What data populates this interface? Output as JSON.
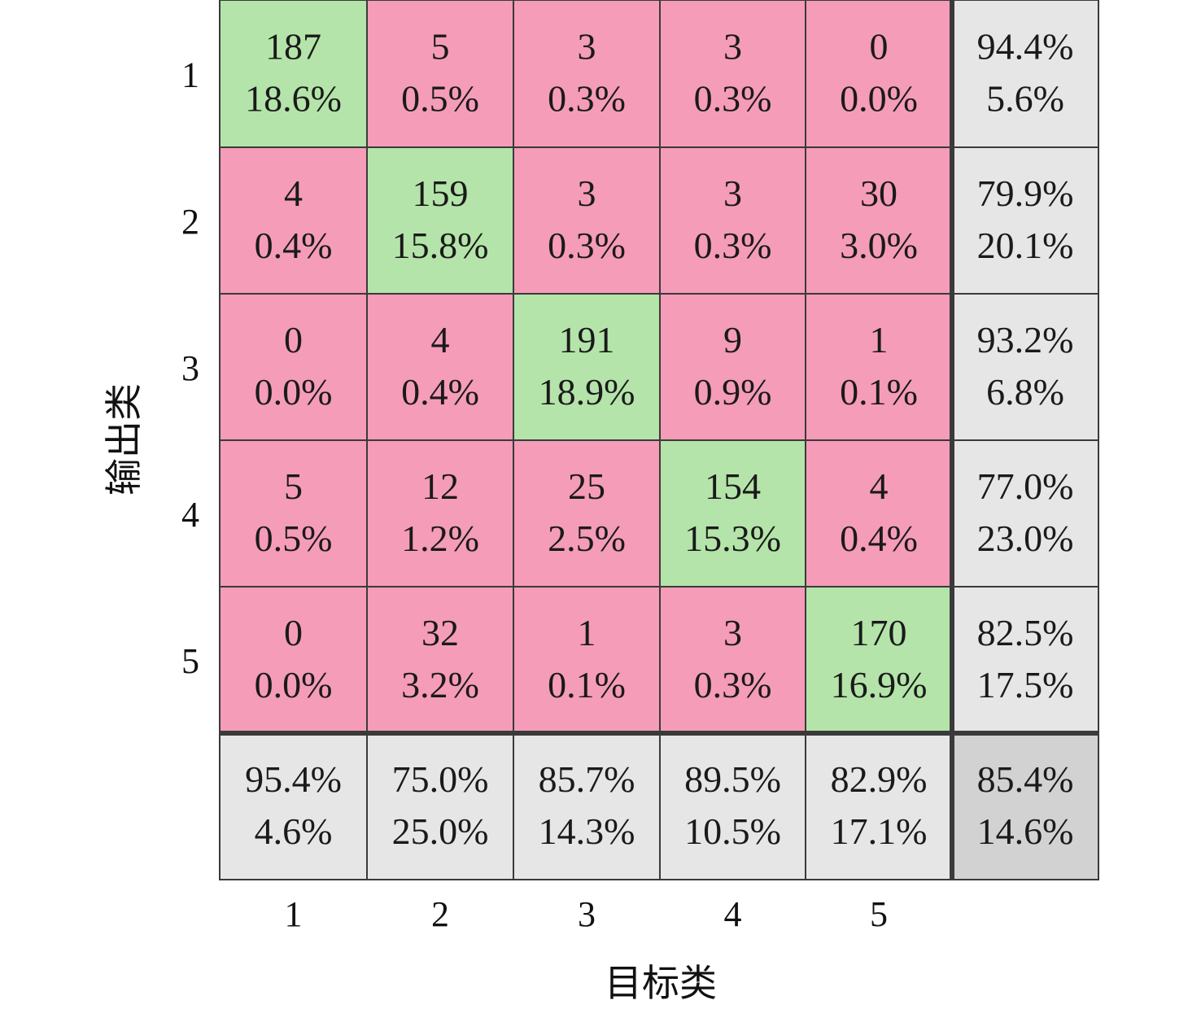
{
  "chart_data": {
    "type": "heatmap",
    "xlabel": "目标类",
    "ylabel": "输出类",
    "x_tick_labels": [
      "1",
      "2",
      "3",
      "4",
      "5"
    ],
    "y_tick_labels": [
      "1",
      "2",
      "3",
      "4",
      "5"
    ],
    "counts": [
      [
        187,
        5,
        3,
        3,
        0
      ],
      [
        4,
        159,
        3,
        3,
        30
      ],
      [
        0,
        4,
        191,
        9,
        1
      ],
      [
        5,
        12,
        25,
        154,
        4
      ],
      [
        0,
        32,
        1,
        3,
        170
      ]
    ],
    "percents": [
      [
        "18.6%",
        "0.5%",
        "0.3%",
        "0.3%",
        "0.0%"
      ],
      [
        "0.4%",
        "15.8%",
        "0.3%",
        "0.3%",
        "3.0%"
      ],
      [
        "0.0%",
        "0.4%",
        "18.9%",
        "0.9%",
        "0.1%"
      ],
      [
        "0.5%",
        "1.2%",
        "2.5%",
        "15.3%",
        "0.4%"
      ],
      [
        "0.0%",
        "3.2%",
        "0.1%",
        "0.3%",
        "16.9%"
      ]
    ],
    "row_summary": [
      [
        "94.4%",
        "5.6%"
      ],
      [
        "79.9%",
        "20.1%"
      ],
      [
        "93.2%",
        "6.8%"
      ],
      [
        "77.0%",
        "23.0%"
      ],
      [
        "82.5%",
        "17.5%"
      ]
    ],
    "column_summary": [
      [
        "95.4%",
        "4.6%"
      ],
      [
        "75.0%",
        "25.0%"
      ],
      [
        "85.7%",
        "14.3%"
      ],
      [
        "89.5%",
        "10.5%"
      ],
      [
        "82.9%",
        "17.1%"
      ]
    ],
    "overall_summary": [
      "85.4%",
      "14.6%"
    ],
    "colors": {
      "correct": "#b4e4a9",
      "incorrect": "#f59cb9",
      "summary": "#e6e6e6",
      "overall": "#d2d2d2",
      "grid": "#3a3a3a"
    }
  }
}
